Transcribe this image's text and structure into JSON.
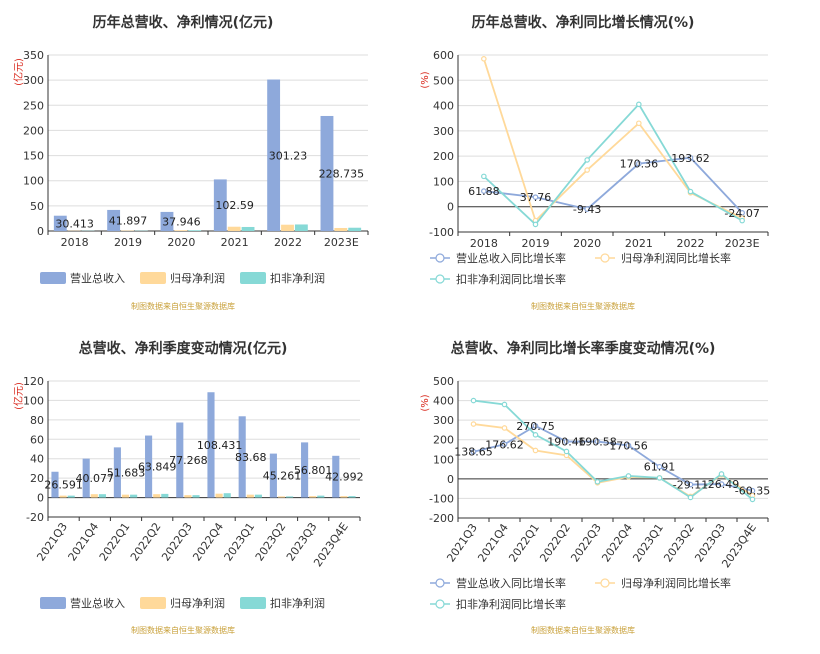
{
  "colors": {
    "revenue": "#8ea9db",
    "net_profit": "#ffd99a",
    "deducted_profit": "#86d9d6"
  },
  "chart_data": [
    {
      "id": "c1",
      "type": "bar",
      "title": "历年总营收、净利情况(亿元)",
      "unit_label": "(亿元)",
      "categories": [
        "2018",
        "2019",
        "2020",
        "2021",
        "2022",
        "2023E"
      ],
      "ylim": [
        0,
        350
      ],
      "yticks": [
        0,
        50,
        100,
        150,
        200,
        250,
        300,
        350
      ],
      "series": [
        {
          "name": "营业总收入",
          "key": "revenue",
          "values": [
            30.413,
            41.897,
            37.946,
            102.59,
            301.23,
            228.735
          ],
          "labels": [
            "30.413",
            "41.897",
            "37.946",
            "102.59",
            "301.23",
            "228.735"
          ]
        },
        {
          "name": "归母净利润",
          "key": "net_profit",
          "values": [
            0.5,
            0.8,
            1.5,
            8.5,
            12.5,
            6
          ]
        },
        {
          "name": "扣非净利润",
          "key": "deducted_profit",
          "values": [
            0.5,
            0.6,
            1.5,
            8,
            13,
            6.5
          ]
        }
      ],
      "source": "制图数据来自恒生聚源数据库"
    },
    {
      "id": "c2",
      "type": "line",
      "title": "历年总营收、净利同比增长情况(%)",
      "unit_label": "(%)",
      "categories": [
        "2018",
        "2019",
        "2020",
        "2021",
        "2022",
        "2023E"
      ],
      "ylim": [
        -100,
        600
      ],
      "yticks": [
        -100,
        0,
        100,
        200,
        300,
        400,
        500,
        600
      ],
      "series": [
        {
          "name": "营业总收入同比增长率",
          "key": "revenue",
          "values": [
            61.88,
            37.76,
            -9.43,
            170.36,
            193.62,
            -24.07
          ],
          "labels": [
            "61.88",
            "37.76",
            "-9.43",
            "170.36",
            "193.62",
            "-24.07"
          ]
        },
        {
          "name": "归母净利润同比增长率",
          "key": "net_profit",
          "values": [
            585,
            -55,
            145,
            330,
            55,
            -45
          ]
        },
        {
          "name": "扣非净利润同比增长率",
          "key": "deducted_profit",
          "values": [
            120,
            -70,
            185,
            405,
            60,
            -55
          ]
        }
      ],
      "source": "制图数据来自恒生聚源数据库"
    },
    {
      "id": "c3",
      "type": "bar",
      "title": "总营收、净利季度变动情况(亿元)",
      "unit_label": "(亿元)",
      "categories": [
        "2021Q3",
        "2021Q4",
        "2022Q1",
        "2022Q2",
        "2022Q3",
        "2022Q4",
        "2023Q1",
        "2023Q2",
        "2023Q3",
        "2023Q4E"
      ],
      "ylim": [
        -20,
        120
      ],
      "yticks": [
        -20,
        0,
        20,
        40,
        60,
        80,
        100,
        120
      ],
      "series": [
        {
          "name": "营业总收入",
          "key": "revenue",
          "values": [
            26.591,
            40.077,
            51.683,
            63.849,
            77.268,
            108.431,
            83.68,
            45.261,
            56.801,
            42.992
          ],
          "labels": [
            "26.591",
            "40.077",
            "51.683",
            "63.849",
            "77.268",
            "108.431",
            "83.68",
            "45.261",
            "56.801",
            "42.992"
          ]
        },
        {
          "name": "归母净利润",
          "key": "net_profit",
          "values": [
            2,
            3.5,
            3,
            3.5,
            2.5,
            4,
            3,
            1.2,
            1.5,
            1.5
          ]
        },
        {
          "name": "扣非净利润",
          "key": "deducted_profit",
          "values": [
            2,
            3.5,
            3,
            3.8,
            2.5,
            4.5,
            3,
            1.2,
            2,
            1.5
          ]
        }
      ],
      "source": "制图数据来自恒生聚源数据库"
    },
    {
      "id": "c4",
      "type": "line",
      "title": "总营收、净利同比增长率季度变动情况(%)",
      "unit_label": "(%)",
      "categories": [
        "2021Q3",
        "2021Q4",
        "2022Q1",
        "2022Q2",
        "2022Q3",
        "2022Q4",
        "2023Q1",
        "2023Q2",
        "2023Q3",
        "2023Q4E"
      ],
      "ylim": [
        -200,
        500
      ],
      "yticks": [
        -200,
        -100,
        0,
        100,
        200,
        300,
        400,
        500
      ],
      "series": [
        {
          "name": "营业总收入同比增长率",
          "key": "revenue",
          "values": [
            138.65,
            176.62,
            270.75,
            190.46,
            190.58,
            170.56,
            61.91,
            -29.11,
            -26.49,
            -60.35
          ],
          "labels": [
            "138.65",
            "176.62",
            "270.75",
            "190.46",
            "190.58",
            "170.56",
            "61.91",
            "-29.11",
            "-26.49",
            "-60.35"
          ]
        },
        {
          "name": "归母净利润同比增长率",
          "key": "net_profit",
          "values": [
            280,
            260,
            145,
            120,
            -20,
            10,
            5,
            -90,
            20,
            -85
          ]
        },
        {
          "name": "扣非净利润同比增长率",
          "key": "deducted_profit",
          "values": [
            400,
            380,
            225,
            140,
            -15,
            15,
            5,
            -95,
            25,
            -105
          ]
        }
      ],
      "source": "制图数据来自恒生聚源数据库"
    }
  ]
}
